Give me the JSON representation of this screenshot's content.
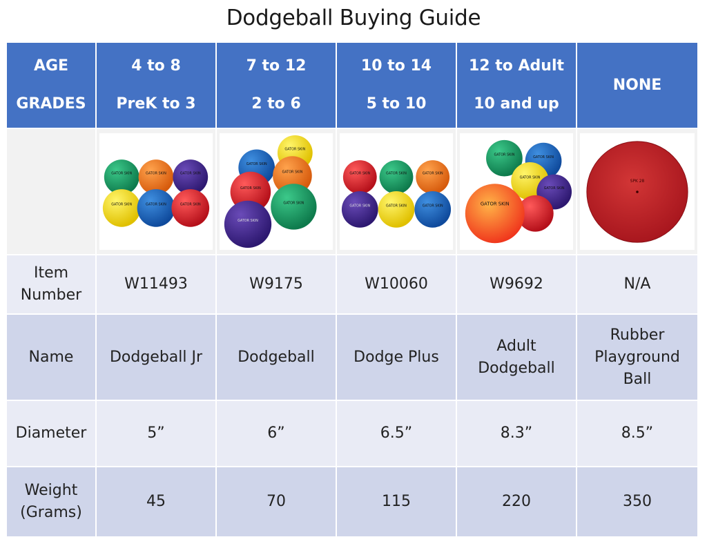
{
  "title": "Dodgeball Buying Guide",
  "header": {
    "label_age": "AGE",
    "label_grades": "GRADES",
    "columns": [
      {
        "age": "4 to 8",
        "grades": "PreK to 3"
      },
      {
        "age": "7 to 12",
        "grades": "2 to 6"
      },
      {
        "age": "10 to 14",
        "grades": "5 to 10"
      },
      {
        "age": "12 to Adult",
        "grades": "10 and up"
      },
      {
        "single": "NONE"
      }
    ]
  },
  "rows": {
    "item_number": {
      "label_line1": "Item",
      "label_line2": "Number",
      "values": [
        "W11493",
        "W9175",
        "W10060",
        "W9692",
        "N/A"
      ]
    },
    "name": {
      "label": "Name",
      "values": [
        {
          "l1": "Dodgeball Jr"
        },
        {
          "l1": "Dodgeball"
        },
        {
          "l1": "Dodge Plus"
        },
        {
          "l1": "Adult",
          "l2": "Dodgeball"
        },
        {
          "l1": "Rubber",
          "l2": "Playground",
          "l3": "Ball"
        }
      ]
    },
    "diameter": {
      "label": "Diameter",
      "values": [
        "5”",
        "6”",
        "6.5”",
        "8.3”",
        "8.5”"
      ]
    },
    "weight": {
      "label_line1": "Weight",
      "label_line2": "(Grams)",
      "values": [
        "45",
        "70",
        "115",
        "220",
        "350"
      ]
    }
  },
  "images": {
    "brand_text": "GATOR SKIN",
    "playground_text": "SPK 28",
    "colors": {
      "header": "#4472c4",
      "row_light": "#e9ebf5",
      "row_dark": "#cfd5ea"
    }
  }
}
